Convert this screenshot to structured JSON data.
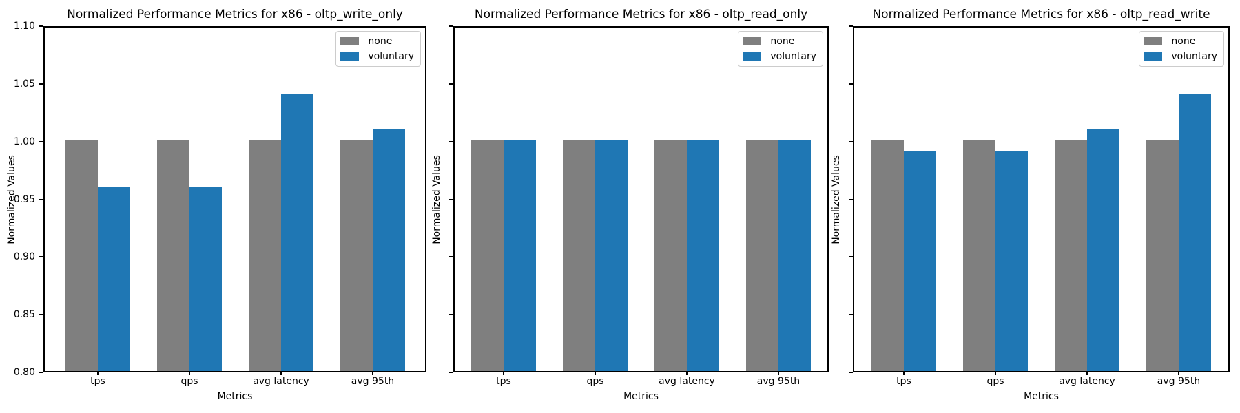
{
  "figure": {
    "background": "#ffffff",
    "axis_color": "#000000",
    "legend_border_color": "#cccccc"
  },
  "chart_data": [
    {
      "type": "bar",
      "title": "Normalized Performance Metrics for x86 - oltp_write_only",
      "xlabel": "Metrics",
      "ylabel": "Normalized Values",
      "categories": [
        "tps",
        "qps",
        "avg latency",
        "avg 95th"
      ],
      "series": [
        {
          "name": "none",
          "color": "#7f7f7f",
          "values": [
            1.0,
            1.0,
            1.0,
            1.0
          ]
        },
        {
          "name": "voluntary",
          "color": "#1f77b4",
          "values": [
            0.96,
            0.96,
            1.04,
            1.01
          ]
        }
      ],
      "ylim": [
        0.8,
        1.1
      ],
      "yticks": [
        0.8,
        0.85,
        0.9,
        0.95,
        1.0,
        1.05,
        1.1
      ],
      "show_ytick_labels": true,
      "legend_position": "upper right",
      "grid": false
    },
    {
      "type": "bar",
      "title": "Normalized Performance Metrics for x86 - oltp_read_only",
      "xlabel": "Metrics",
      "ylabel": "Normalized Values",
      "categories": [
        "tps",
        "qps",
        "avg latency",
        "avg 95th"
      ],
      "series": [
        {
          "name": "none",
          "color": "#7f7f7f",
          "values": [
            1.0,
            1.0,
            1.0,
            1.0
          ]
        },
        {
          "name": "voluntary",
          "color": "#1f77b4",
          "values": [
            1.0,
            1.0,
            1.0,
            1.0
          ]
        }
      ],
      "ylim": [
        0.8,
        1.1
      ],
      "yticks": [
        0.8,
        0.85,
        0.9,
        0.95,
        1.0,
        1.05,
        1.1
      ],
      "show_ytick_labels": false,
      "legend_position": "upper right",
      "grid": false
    },
    {
      "type": "bar",
      "title": "Normalized Performance Metrics for x86 - oltp_read_write",
      "xlabel": "Metrics",
      "ylabel": "Normalized Values",
      "categories": [
        "tps",
        "qps",
        "avg latency",
        "avg 95th"
      ],
      "series": [
        {
          "name": "none",
          "color": "#7f7f7f",
          "values": [
            1.0,
            1.0,
            1.0,
            1.0
          ]
        },
        {
          "name": "voluntary",
          "color": "#1f77b4",
          "values": [
            0.99,
            0.99,
            1.01,
            1.04
          ]
        }
      ],
      "ylim": [
        0.8,
        1.1
      ],
      "yticks": [
        0.8,
        0.85,
        0.9,
        0.95,
        1.0,
        1.05,
        1.1
      ],
      "show_ytick_labels": false,
      "legend_position": "upper right",
      "grid": false
    }
  ]
}
